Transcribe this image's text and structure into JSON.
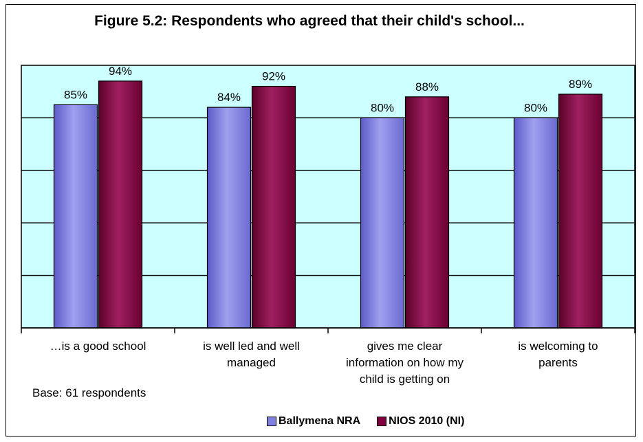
{
  "chart_data": {
    "type": "bar",
    "title": "Figure 5.2: Respondents who agreed that their child's school...",
    "categories": [
      [
        "…is a good school"
      ],
      [
        "is well led and well",
        "managed"
      ],
      [
        "gives me clear",
        "information on how my",
        "child is getting on"
      ],
      [
        "is welcoming to",
        "parents"
      ]
    ],
    "series": [
      {
        "name": "Ballymena NRA",
        "values": [
          85,
          84,
          80,
          80
        ],
        "labels": [
          "85%",
          "84%",
          "80%",
          "80%"
        ],
        "color": "#8080E0"
      },
      {
        "name": "NIOS 2010 (NI)",
        "values": [
          94,
          92,
          88,
          89
        ],
        "labels": [
          "94%",
          "92%",
          "88%",
          "89%"
        ],
        "color": "#800040"
      }
    ],
    "ylim": [
      0,
      100
    ],
    "grid": true,
    "plot_background": "#CCFFFF",
    "legend_position": "bottom",
    "note": "Base: 61 respondents"
  }
}
